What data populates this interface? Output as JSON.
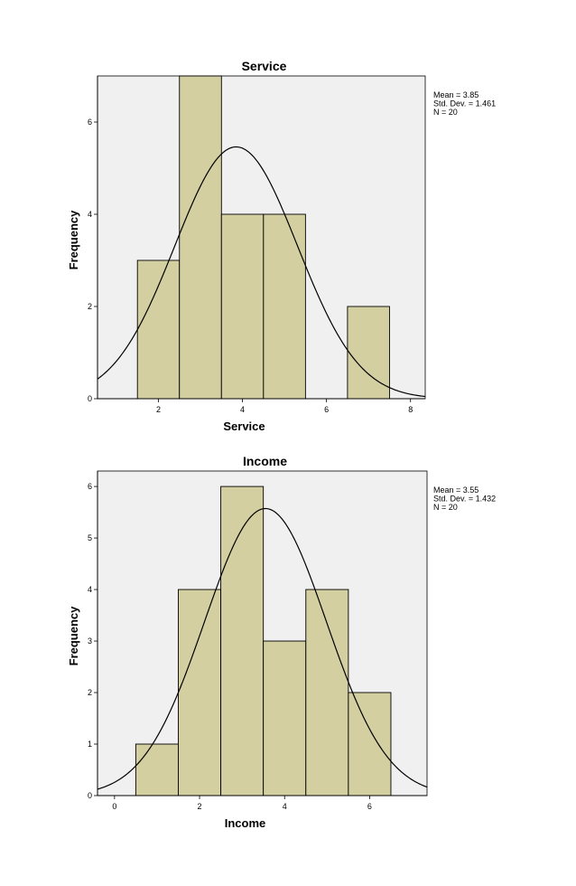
{
  "chart_data": [
    {
      "type": "bar",
      "title": "Service",
      "xlabel": "Service",
      "ylabel": "Frequency",
      "xlim": [
        0.55,
        8.35
      ],
      "ylim": [
        0,
        7.0
      ],
      "xticks": [
        2,
        4,
        6,
        8
      ],
      "yticks": [
        0,
        2,
        4,
        6
      ],
      "bins": [
        {
          "from": 1.5,
          "to": 2.5,
          "value": 3
        },
        {
          "from": 2.5,
          "to": 3.5,
          "value": 7
        },
        {
          "from": 3.5,
          "to": 4.5,
          "value": 4
        },
        {
          "from": 4.5,
          "to": 5.5,
          "value": 4
        },
        {
          "from": 5.5,
          "to": 6.5,
          "value": 0
        },
        {
          "from": 6.5,
          "to": 7.5,
          "value": 2
        }
      ],
      "normal_curve": {
        "mean": 3.85,
        "sd": 1.461,
        "n": 20,
        "binwidth": 1
      },
      "stats": [
        "Mean = 3.85",
        "Std. Dev. = 1.461",
        "N = 20"
      ],
      "grid": false
    },
    {
      "type": "bar",
      "title": "Income",
      "xlabel": "Income",
      "ylabel": "Frequency",
      "xlim": [
        -0.4,
        7.35
      ],
      "ylim": [
        0,
        6.3
      ],
      "xticks": [
        0,
        2,
        4,
        6
      ],
      "yticks": [
        0,
        1,
        2,
        3,
        4,
        5,
        6
      ],
      "bins": [
        {
          "from": 0.5,
          "to": 1.5,
          "value": 1
        },
        {
          "from": 1.5,
          "to": 2.5,
          "value": 4
        },
        {
          "from": 2.5,
          "to": 3.5,
          "value": 6
        },
        {
          "from": 3.5,
          "to": 4.5,
          "value": 3
        },
        {
          "from": 4.5,
          "to": 5.5,
          "value": 4
        },
        {
          "from": 5.5,
          "to": 6.5,
          "value": 2
        }
      ],
      "normal_curve": {
        "mean": 3.55,
        "sd": 1.432,
        "n": 20,
        "binwidth": 1
      },
      "stats": [
        "Mean = 3.55",
        "Std. Dev. = 1.432",
        "N = 20"
      ],
      "grid": false
    }
  ],
  "colors": {
    "bar_fill": "#d3cfa0",
    "plot_bg": "#f0f0f0",
    "stroke": "#000000"
  }
}
